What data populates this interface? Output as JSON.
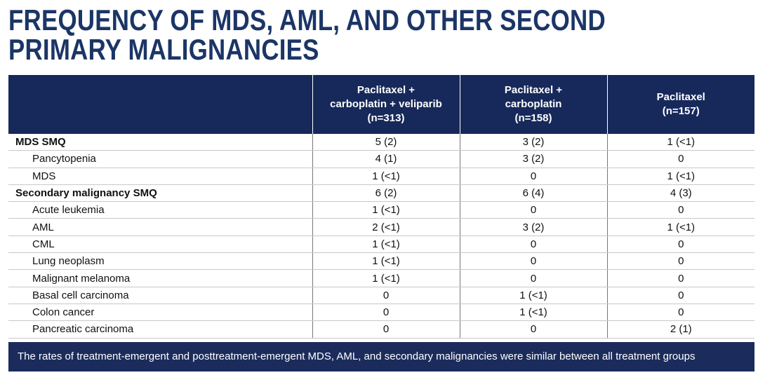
{
  "title": [
    "FREQUENCY OF MDS, AML, AND OTHER SECOND",
    "PRIMARY MALIGNANCIES"
  ],
  "table": {
    "columns": [
      [
        "Paclitaxel +",
        "carboplatin + veliparib",
        "(n=313)"
      ],
      [
        "Paclitaxel +",
        "carboplatin",
        "(n=158)"
      ],
      [
        "Paclitaxel",
        "(n=157)"
      ]
    ],
    "groups": [
      {
        "label": "MDS SMQ",
        "values": [
          "5 (2)",
          "3 (2)",
          "1 (<1)"
        ],
        "items": [
          {
            "label": "Pancytopenia",
            "values": [
              "4 (1)",
              "3 (2)",
              "0"
            ]
          },
          {
            "label": "MDS",
            "values": [
              "1 (<1)",
              "0",
              "1 (<1)"
            ]
          }
        ]
      },
      {
        "label": "Secondary malignancy SMQ",
        "values": [
          "6 (2)",
          "6 (4)",
          "4 (3)"
        ],
        "items": [
          {
            "label": "Acute leukemia",
            "values": [
              "1 (<1)",
              "0",
              "0"
            ]
          },
          {
            "label": "AML",
            "values": [
              "2 (<1)",
              "3 (2)",
              "1 (<1)"
            ]
          },
          {
            "label": "CML",
            "values": [
              "1 (<1)",
              "0",
              "0"
            ]
          },
          {
            "label": "Lung neoplasm",
            "values": [
              "1 (<1)",
              "0",
              "0"
            ]
          },
          {
            "label": "Malignant melanoma",
            "values": [
              "1 (<1)",
              "0",
              "0"
            ]
          },
          {
            "label": "Basal cell carcinoma",
            "values": [
              "0",
              "1 (<1)",
              "0"
            ]
          },
          {
            "label": "Colon cancer",
            "values": [
              "0",
              "1 (<1)",
              "0"
            ]
          },
          {
            "label": "Pancreatic carcinoma",
            "values": [
              "0",
              "0",
              "2 (1)"
            ]
          }
        ]
      }
    ]
  },
  "footer": "The rates of treatment-emergent and posttreatment-emergent MDS, AML, and secondary malignancies were similar between all treatment groups"
}
